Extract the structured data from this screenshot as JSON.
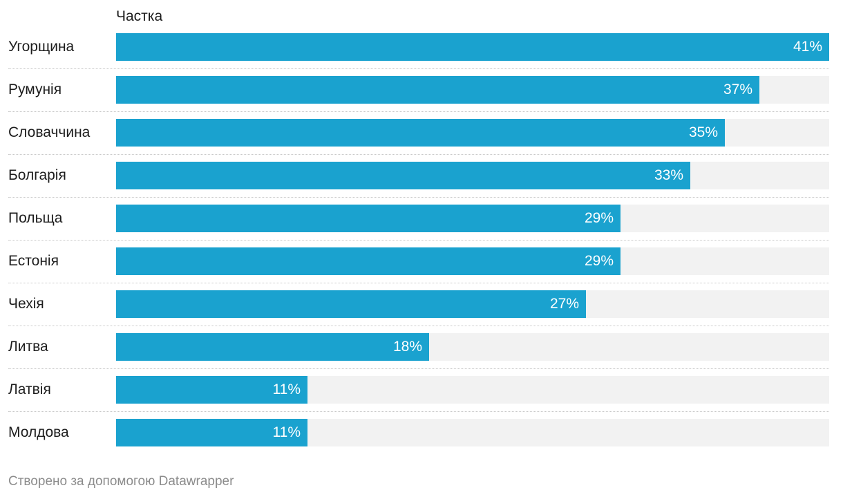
{
  "chart_data": {
    "type": "bar",
    "orientation": "horizontal",
    "column_header": "Частка",
    "categories": [
      "Угорщина",
      "Румунія",
      "Словаччина",
      "Болгарія",
      "Польща",
      "Естонія",
      "Чехія",
      "Литва",
      "Латвія",
      "Молдова"
    ],
    "values": [
      41,
      37,
      35,
      33,
      29,
      29,
      27,
      18,
      11,
      11
    ],
    "value_labels": [
      "41%",
      "37%",
      "35%",
      "33%",
      "29%",
      "29%",
      "27%",
      "18%",
      "11%",
      "11%"
    ],
    "unit": "%",
    "xlim": [
      0,
      41
    ],
    "grid": false,
    "bar_color": "#1aa2cf",
    "track_color": "#f2f2f2"
  },
  "footer": {
    "credit": "Створено за допомогою Datawrapper"
  }
}
